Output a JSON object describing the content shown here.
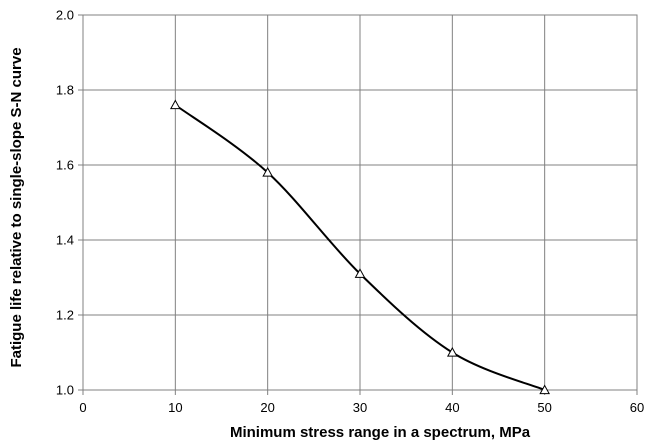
{
  "chart_data": {
    "type": "line",
    "title": "",
    "xlabel": "Minimum stress range in a spectrum, MPa",
    "ylabel": "Fatigue life relative to single-slope S-N curve",
    "xlim": [
      0,
      60
    ],
    "ylim": [
      1.0,
      2.0
    ],
    "x_ticks": [
      0,
      10,
      20,
      30,
      40,
      50,
      60
    ],
    "y_ticks": [
      1.0,
      1.2,
      1.4,
      1.6,
      1.8,
      2.0
    ],
    "x_tick_labels": [
      "0",
      "10",
      "20",
      "30",
      "40",
      "50",
      "60"
    ],
    "y_tick_labels": [
      "1.0",
      "1.2",
      "1.4",
      "1.6",
      "1.8",
      "2.0"
    ],
    "grid": true,
    "legend": "none",
    "series": [
      {
        "x": [
          10,
          20,
          30,
          40,
          50
        ],
        "y": [
          1.76,
          1.58,
          1.31,
          1.1,
          1.0
        ],
        "marker": "triangle-open",
        "smooth": true,
        "color": "#000000"
      }
    ]
  }
}
